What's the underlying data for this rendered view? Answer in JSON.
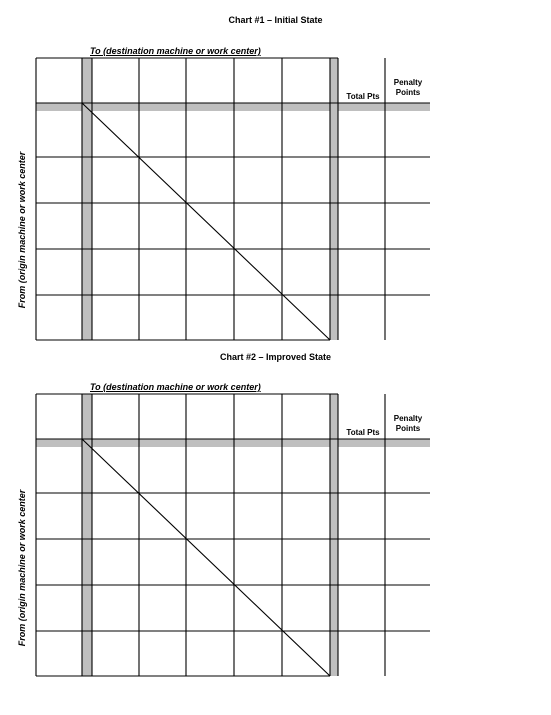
{
  "charts": [
    {
      "title": "Chart #1 – Initial State",
      "to_label": "To (destination machine or work center)",
      "from_label": "From (origin machine or work center",
      "total_label": "Total Pts",
      "penalty_label_line1": "Penalty",
      "penalty_label_line2": "Points"
    },
    {
      "title": "Chart #2 – Improved State",
      "to_label": "To (destination machine or work center)",
      "from_label": "From (origin machine or work center",
      "total_label": "Total Pts",
      "penalty_label_line1": "Penalty",
      "penalty_label_line2": "Points"
    }
  ]
}
